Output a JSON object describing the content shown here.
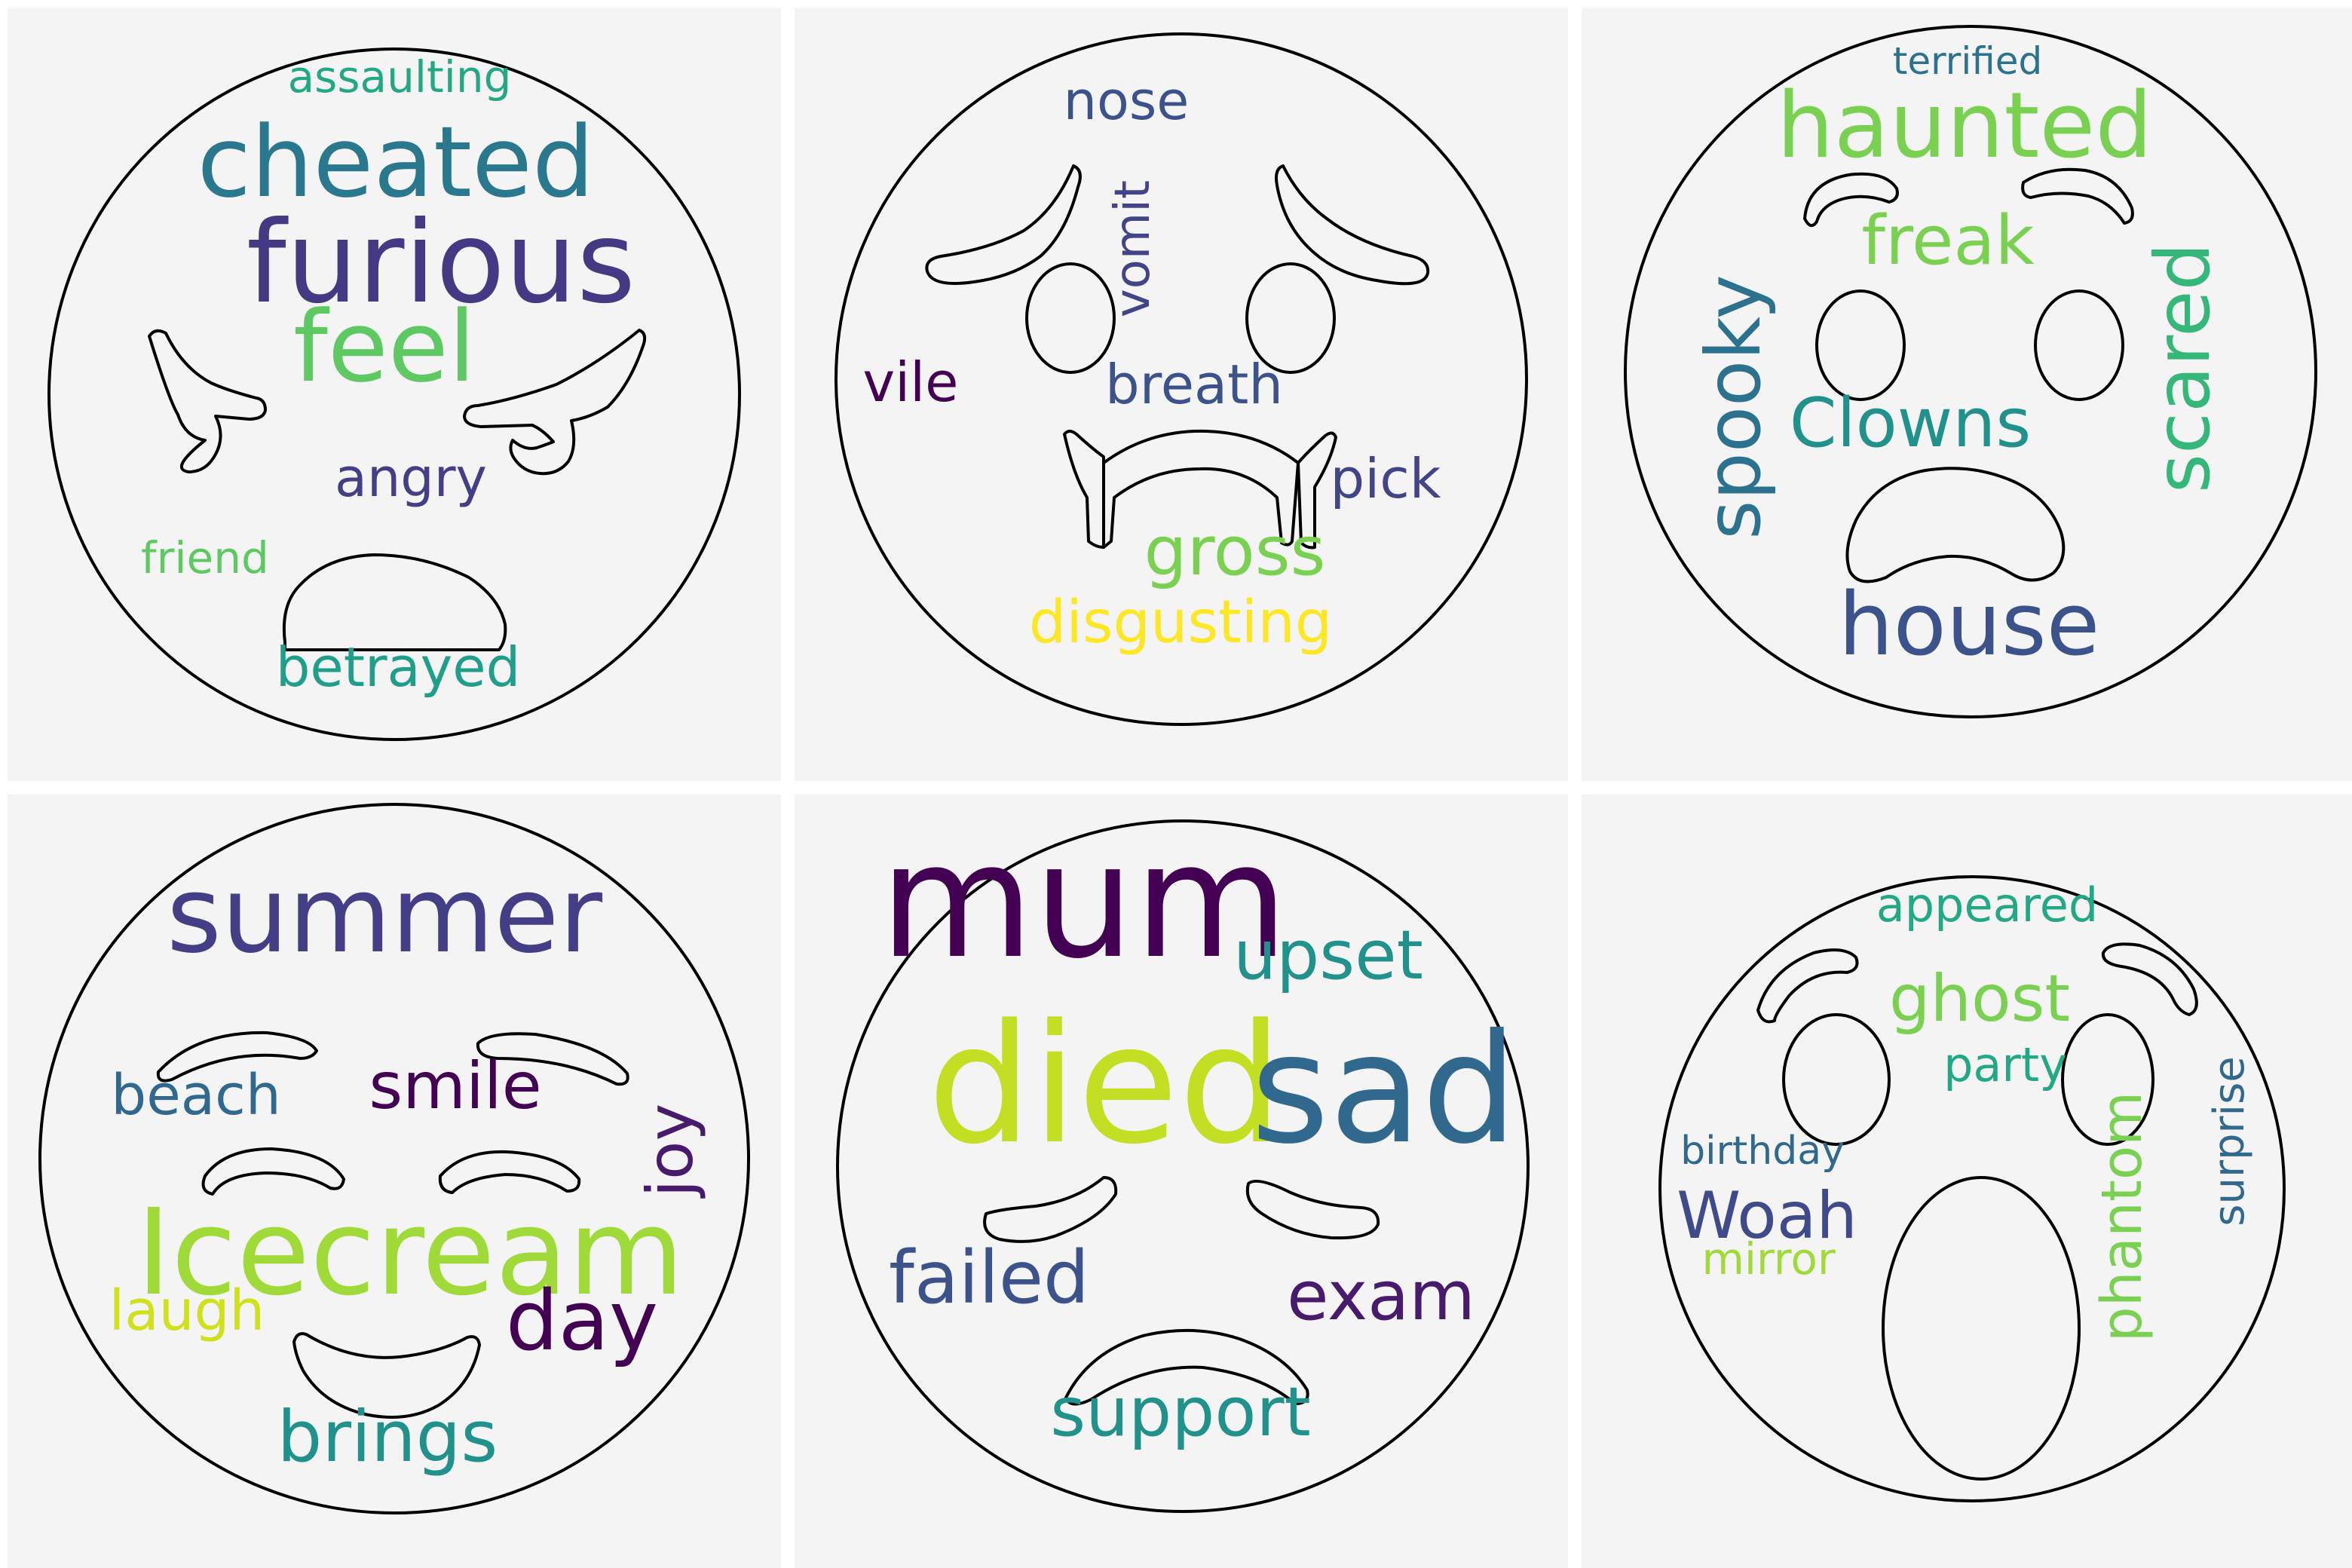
{
  "panels": [
    {
      "emotion": "anger",
      "words": [
        "assaulting",
        "cheated",
        "furious",
        "feel",
        "angry",
        "friend",
        "betrayed"
      ],
      "colors": [
        "#22a884",
        "#2a788e",
        "#443983",
        "#5ec962",
        "#433e85",
        "#5ec962",
        "#1f9e89"
      ]
    },
    {
      "emotion": "disgust",
      "words": [
        "nose",
        "vomit",
        "vile",
        "breath",
        "pick",
        "gross",
        "disgusting"
      ],
      "colors": [
        "#3b528b",
        "#414487",
        "#440154",
        "#3b528b",
        "#414487",
        "#7ad151",
        "#fde725"
      ]
    },
    {
      "emotion": "fear",
      "words": [
        "terrified",
        "haunted",
        "freak",
        "scared",
        "spooky",
        "Clowns",
        "house"
      ],
      "colors": [
        "#2c728e",
        "#7ad151",
        "#7ad151",
        "#35b779",
        "#2c728e",
        "#21918c",
        "#3b528b"
      ]
    },
    {
      "emotion": "joy",
      "words": [
        "summer",
        "beach",
        "smile",
        "joy",
        "Icecream",
        "laugh",
        "day",
        "brings"
      ],
      "colors": [
        "#433e85",
        "#31688e",
        "#440154",
        "#481a6c",
        "#a0da39",
        "#d0e11c",
        "#440154",
        "#21918c"
      ]
    },
    {
      "emotion": "sadness",
      "words": [
        "mum",
        "upset",
        "died",
        "sad",
        "failed",
        "exam",
        "support"
      ],
      "colors": [
        "#440154",
        "#21918c",
        "#c2df23",
        "#31688e",
        "#3b528b",
        "#481a6c",
        "#21918c"
      ]
    },
    {
      "emotion": "surprise",
      "words": [
        "appeared",
        "ghost",
        "party",
        "birthday",
        "surprise",
        "Woah",
        "mirror",
        "phantom"
      ],
      "colors": [
        "#22a884",
        "#7ad151",
        "#22a884",
        "#31688e",
        "#31688e",
        "#3e4a89",
        "#a0da39",
        "#7ad151"
      ]
    }
  ]
}
